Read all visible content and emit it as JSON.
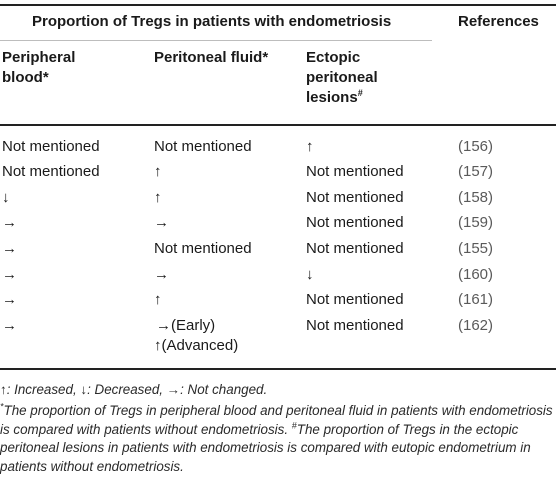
{
  "table": {
    "group_header": "Proportion of Tregs in patients with endometriosis",
    "references_header": "References",
    "col_headers": {
      "peripheral_1": "Peripheral",
      "peripheral_2": "blood*",
      "peritoneal": "Peritoneal fluid*",
      "ectopic_1": "Ectopic",
      "ectopic_2": "peritoneal",
      "ectopic_3": "lesions",
      "ectopic_sup": "#"
    },
    "rows": [
      {
        "blood": "Not mentioned",
        "fluid": "Not mentioned",
        "lesions": "↑",
        "ref": "(156)"
      },
      {
        "blood": "Not mentioned",
        "fluid": "↑",
        "lesions": "Not mentioned",
        "ref": "(157)"
      },
      {
        "blood": "↓",
        "fluid": "↑",
        "lesions": "Not mentioned",
        "ref": "(158)"
      },
      {
        "blood": "→",
        "fluid": "→",
        "lesions": "Not mentioned",
        "ref": "(159)"
      },
      {
        "blood": "→",
        "fluid": "Not mentioned",
        "lesions": "Not mentioned",
        "ref": "(155)"
      },
      {
        "blood": "→",
        "fluid": "→",
        "lesions": "↓",
        "ref": "(160)"
      },
      {
        "blood": "→",
        "fluid": "↑",
        "lesions": "Not mentioned",
        "ref": "(161)"
      },
      {
        "blood": "→",
        "fluid": "→(Early)",
        "fluid_2": "↑(Advanced)",
        "lesions": "Not mentioned",
        "ref": "(162)"
      }
    ]
  },
  "footnotes": {
    "legend": "↑: Increased, ↓: Decreased, →: Not changed.",
    "note_a_mark": "*",
    "note_a": "The proportion of Tregs in peripheral blood and peritoneal fluid in patients with endometriosis is compared with patients without endometriosis.",
    "note_b_mark": "#",
    "note_b": "The proportion of Tregs in the ectopic peritoneal lesions in patients with endometriosis is compared with eutopic endometrium in patients without endometriosis."
  }
}
